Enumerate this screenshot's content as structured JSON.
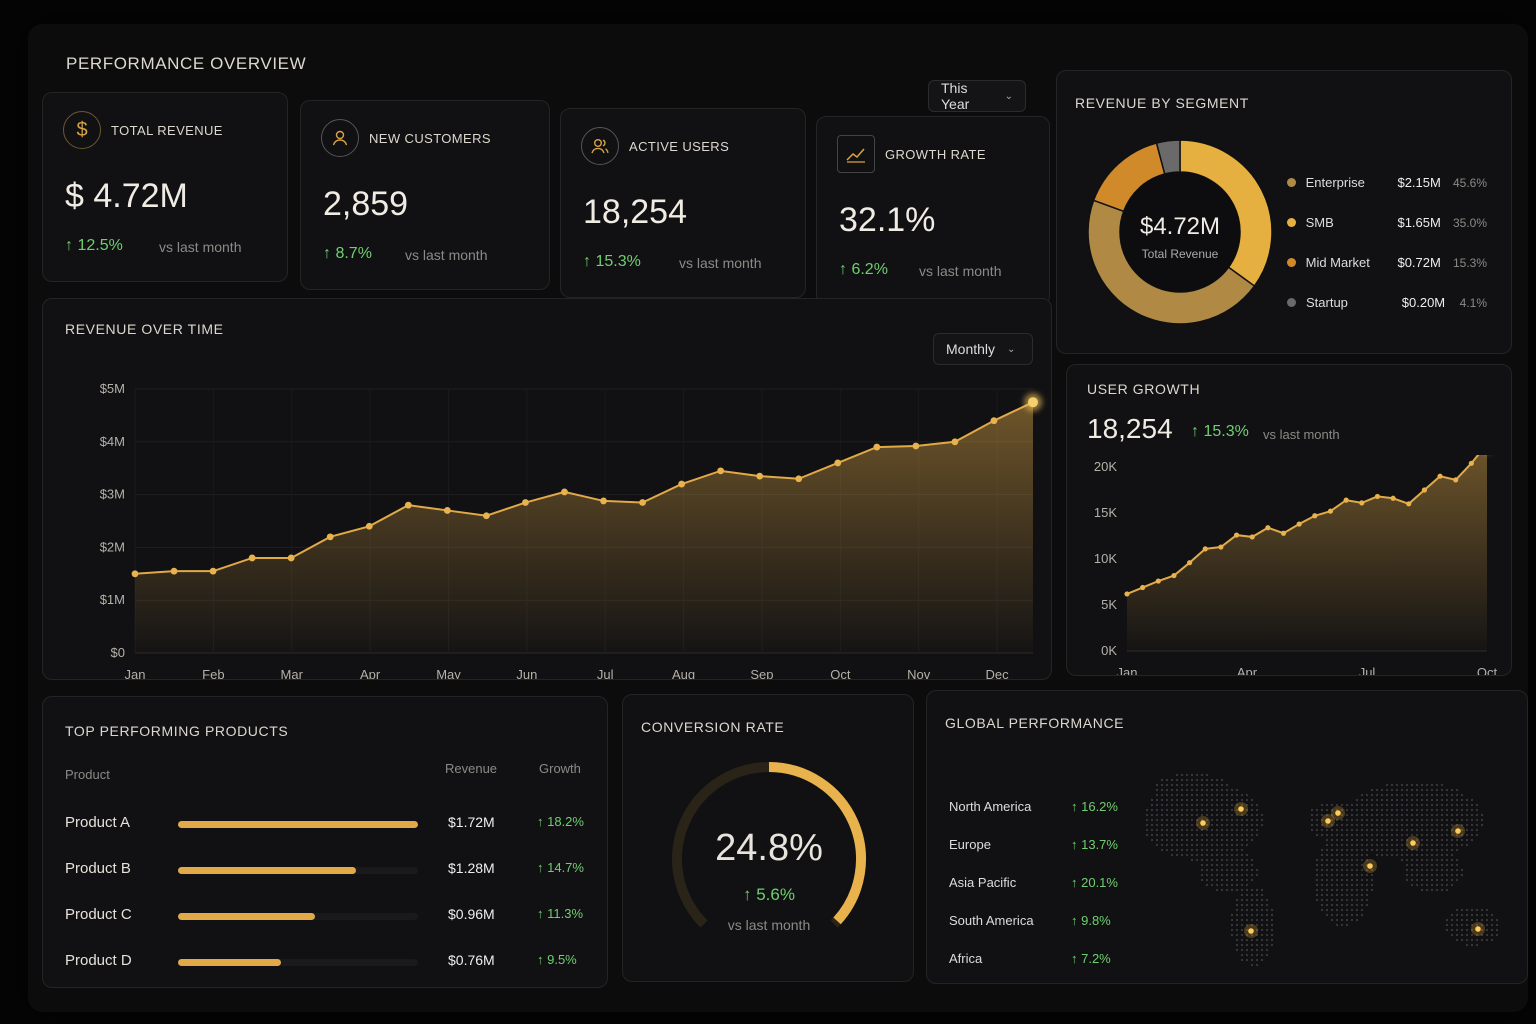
{
  "header": {
    "title": "PERFORMANCE OVERVIEW",
    "period": "This Year"
  },
  "colors": {
    "accent": "#e1a947",
    "positive": "#6fcf70",
    "background": "#0c0c0d"
  },
  "kpis": [
    {
      "label": "TOTAL REVENUE",
      "icon": "dollar-icon",
      "value": "$ 4.72M",
      "change": "↑ 12.5%",
      "vs": "vs last month"
    },
    {
      "label": "NEW CUSTOMERS",
      "icon": "user-icon",
      "value": "2,859",
      "change": "↑ 8.7%",
      "vs": "vs last month"
    },
    {
      "label": "ACTIVE USERS",
      "icon": "users-icon",
      "value": "18,254",
      "change": "↑ 15.3%",
      "vs": "vs last month"
    },
    {
      "label": "GROWTH RATE",
      "icon": "trend-up-icon",
      "value": "32.1%",
      "change": "↑ 6.2%",
      "vs": "vs last month"
    }
  ],
  "segment": {
    "title": "REVENUE BY SEGMENT",
    "center_value": "$4.72M",
    "center_label": "Total Revenue",
    "rows": [
      {
        "name": "Enterprise",
        "value": "$2.15M",
        "pct": "45.6%",
        "share": 45.6,
        "color": "#b08a44"
      },
      {
        "name": "SMB",
        "value": "$1.65M",
        "pct": "35.0%",
        "share": 35.0,
        "color": "#e6b040"
      },
      {
        "name": "Mid Market",
        "value": "$0.72M",
        "pct": "15.3%",
        "share": 15.3,
        "color": "#d08a2a"
      },
      {
        "name": "Startup",
        "value": "$0.20M",
        "pct": "4.1%",
        "share": 4.1,
        "color": "#6a6a6a"
      }
    ]
  },
  "revenue_chart": {
    "title": "REVENUE OVER TIME",
    "period": "Monthly"
  },
  "user_growth": {
    "title": "USER GROWTH",
    "value": "18,254",
    "change": "↑ 15.3%",
    "vs": "vs last month"
  },
  "chart_data": [
    {
      "type": "area",
      "title": "REVENUE OVER TIME",
      "x_labels": [
        "Jan",
        "Feb",
        "Mar",
        "Apr",
        "May",
        "Jun",
        "Jul",
        "Aug",
        "Sep",
        "Oct",
        "Nov",
        "Dec"
      ],
      "y_ticks": [
        "$0",
        "$1M",
        "$2M",
        "$3M",
        "$4M",
        "$5M"
      ],
      "ylim": [
        0,
        5
      ],
      "series": [
        {
          "values": [
            1.5,
            1.55,
            1.55,
            1.8,
            1.8,
            2.2,
            2.4,
            2.8,
            2.7,
            2.6,
            2.85,
            3.05,
            2.88,
            2.85,
            3.2,
            3.45,
            3.35,
            3.3,
            3.6,
            3.9,
            3.92,
            4.0,
            4.4,
            4.75
          ]
        }
      ],
      "grid": true
    },
    {
      "type": "area",
      "title": "USER GROWTH",
      "x_labels": [
        "Jan",
        "Apr",
        "Jul",
        "Oct"
      ],
      "y_ticks": [
        "0K",
        "5K",
        "10K",
        "15K",
        "20K"
      ],
      "ylim": [
        0,
        20
      ],
      "series": [
        {
          "values": [
            6.2,
            6.9,
            7.6,
            8.2,
            9.6,
            11.1,
            11.3,
            12.6,
            12.4,
            13.4,
            12.8,
            13.8,
            14.7,
            15.2,
            16.4,
            16.1,
            16.8,
            16.6,
            16.0,
            17.5,
            19.0,
            18.6,
            20.4,
            22.5
          ]
        }
      ],
      "grid": false
    }
  ],
  "products": {
    "title": "TOP PERFORMING PRODUCTS",
    "col_product": "Product",
    "col_revenue": "Revenue",
    "col_growth": "Growth",
    "rows": [
      {
        "name": "Product A",
        "revenue": "$1.72M",
        "growth": "↑ 18.2%",
        "share": 1.0
      },
      {
        "name": "Product B",
        "revenue": "$1.28M",
        "growth": "↑ 14.7%",
        "share": 0.74
      },
      {
        "name": "Product C",
        "revenue": "$0.96M",
        "growth": "↑ 11.3%",
        "share": 0.57
      },
      {
        "name": "Product D",
        "revenue": "$0.76M",
        "growth": "↑ 9.5%",
        "share": 0.43
      }
    ]
  },
  "conversion": {
    "title": "CONVERSION RATE",
    "value": "24.8%",
    "change": "↑ 5.6%",
    "vs": "vs last month",
    "fill": 0.62
  },
  "global": {
    "title": "GLOBAL PERFORMANCE",
    "regions": [
      {
        "name": "North America",
        "growth": "↑ 16.2%"
      },
      {
        "name": "Europe",
        "growth": "↑ 13.7%"
      },
      {
        "name": "Asia Pacific",
        "growth": "↑ 20.1%"
      },
      {
        "name": "South America",
        "growth": "↑ 9.8%"
      },
      {
        "name": "Africa",
        "growth": "↑ 7.2%"
      }
    ]
  }
}
